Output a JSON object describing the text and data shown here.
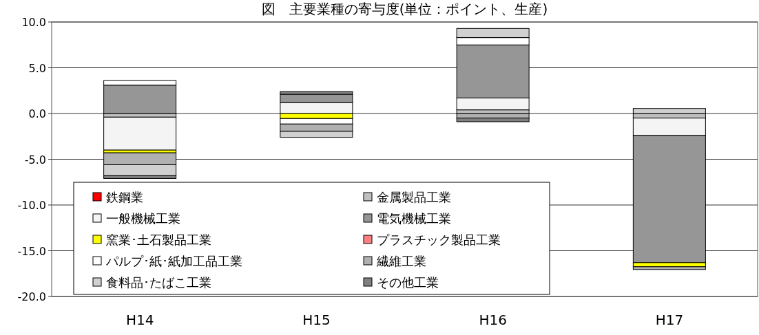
{
  "chart_data": {
    "type": "bar",
    "stacked": true,
    "title": "図　主要業種の寄与度(単位：ポイント、生産)",
    "categories": [
      "H14",
      "H15",
      "H16",
      "H17"
    ],
    "series": [
      {
        "name": "鉄鋼業",
        "color": "#ff0000",
        "values": [
          0,
          0,
          0,
          0
        ]
      },
      {
        "name": "金属製品工業",
        "color": "#c0c0c0",
        "values": [
          -0.4,
          0,
          0.4,
          -0.5
        ]
      },
      {
        "name": "一般機械工業",
        "color": "#f4f4f4",
        "values": [
          -3.6,
          1.2,
          1.3,
          -1.9
        ]
      },
      {
        "name": "電気機械工業",
        "color": "#969696",
        "values": [
          3.1,
          0.9,
          5.8,
          -13.9
        ]
      },
      {
        "name": "窯業･土石製品工業",
        "color": "#ffff00",
        "values": [
          -0.3,
          -0.55,
          0,
          -0.45
        ]
      },
      {
        "name": "プラスチック製品工業",
        "color": "#ff8080",
        "values": [
          0,
          0,
          0,
          0
        ]
      },
      {
        "name": "パルプ･紙･紙加工品工業",
        "color": "#ffffff",
        "values": [
          0.5,
          -0.6,
          0.8,
          0
        ]
      },
      {
        "name": "繊維工業",
        "color": "#b0b0b0",
        "values": [
          -1.3,
          -0.8,
          -0.5,
          -0.3
        ]
      },
      {
        "name": "食料品･たばこ工業",
        "color": "#d0d0d0",
        "values": [
          -1.2,
          -0.65,
          1.0,
          0.55
        ]
      },
      {
        "name": "その他工業",
        "color": "#808080",
        "values": [
          -0.3,
          0.3,
          -0.4,
          0
        ]
      }
    ],
    "ylim": [
      -20,
      10
    ],
    "yticks": [
      {
        "value": -20,
        "label": "-20.0"
      },
      {
        "value": -15,
        "label": "-15.0"
      },
      {
        "value": -10,
        "label": "-10.0"
      },
      {
        "value": -5,
        "label": "-5.0"
      },
      {
        "value": 0,
        "label": "0.0"
      },
      {
        "value": 5,
        "label": "5.0"
      },
      {
        "value": 10,
        "label": "10.0"
      }
    ],
    "grid": "y",
    "legend": "bottom left"
  }
}
